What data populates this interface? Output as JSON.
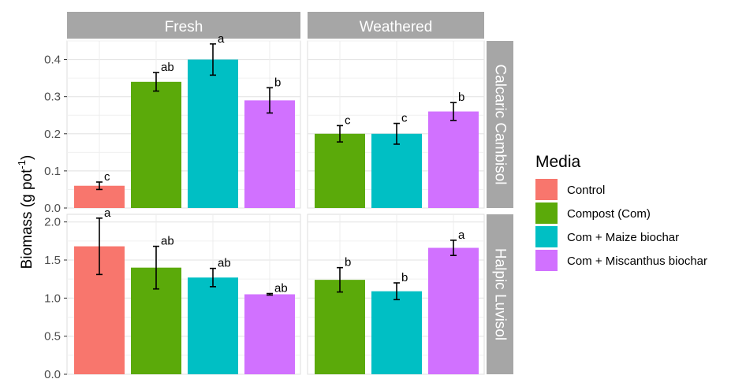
{
  "chart_data": {
    "type": "bar",
    "ylabel": "Biomass (g pot",
    "ylabel_sup": "-1",
    "ylabel_close": ")",
    "col_facets": [
      "Fresh",
      "Weathered"
    ],
    "row_facets": [
      "Calcaric Cambisol",
      "Halpic Luvisol"
    ],
    "grid": true,
    "legend": {
      "title": "Media",
      "position": "right",
      "entries": [
        {
          "name": "Control",
          "color": "#F8766D"
        },
        {
          "name": "Compost (Com)",
          "color": "#5BAA0A"
        },
        {
          "name": "Com + Maize biochar",
          "color": "#00BFC4"
        },
        {
          "name": "Com + Miscanthus biochar",
          "color": "#D171FF"
        }
      ]
    },
    "panels": [
      {
        "col": "Fresh",
        "row": "Calcaric Cambisol",
        "ylim": [
          0,
          0.45
        ],
        "yticks": [
          "0.0",
          "0.1",
          "0.2",
          "0.3",
          "0.4"
        ],
        "bars": [
          {
            "media": "Control",
            "value": 0.06,
            "err": 0.01,
            "label": "c"
          },
          {
            "media": "Compost (Com)",
            "value": 0.34,
            "err": 0.025,
            "label": "ab"
          },
          {
            "media": "Com + Maize biochar",
            "value": 0.4,
            "err": 0.042,
            "label": "a"
          },
          {
            "media": "Com + Miscanthus biochar",
            "value": 0.29,
            "err": 0.034,
            "label": "b"
          }
        ]
      },
      {
        "col": "Weathered",
        "row": "Calcaric Cambisol",
        "ylim": [
          0,
          0.45
        ],
        "yticks": [
          "0.0",
          "0.1",
          "0.2",
          "0.3",
          "0.4"
        ],
        "bars": [
          {
            "media": "Compost (Com)",
            "value": 0.2,
            "err": 0.022,
            "label": "c"
          },
          {
            "media": "Com + Maize biochar",
            "value": 0.2,
            "err": 0.028,
            "label": "c"
          },
          {
            "media": "Com + Miscanthus biochar",
            "value": 0.26,
            "err": 0.024,
            "label": "b"
          }
        ]
      },
      {
        "col": "Fresh",
        "row": "Halpic Luvisol",
        "ylim": [
          0,
          2.1
        ],
        "yticks": [
          "0.0",
          "0.5",
          "1.0",
          "1.5",
          "2.0"
        ],
        "bars": [
          {
            "media": "Control",
            "value": 1.68,
            "err": 0.37,
            "label": "a"
          },
          {
            "media": "Compost (Com)",
            "value": 1.4,
            "err": 0.28,
            "label": "ab"
          },
          {
            "media": "Com + Maize biochar",
            "value": 1.27,
            "err": 0.12,
            "label": "ab"
          },
          {
            "media": "Com + Miscanthus biochar",
            "value": 1.05,
            "err": 0.01,
            "label": "ab"
          }
        ]
      },
      {
        "col": "Weathered",
        "row": "Halpic Luvisol",
        "ylim": [
          0,
          2.1
        ],
        "yticks": [
          "0.0",
          "0.5",
          "1.0",
          "1.5",
          "2.0"
        ],
        "bars": [
          {
            "media": "Compost (Com)",
            "value": 1.24,
            "err": 0.16,
            "label": "b"
          },
          {
            "media": "Com + Maize biochar",
            "value": 1.09,
            "err": 0.11,
            "label": "b"
          },
          {
            "media": "Com + Miscanthus biochar",
            "value": 1.66,
            "err": 0.1,
            "label": "a"
          }
        ]
      }
    ]
  }
}
